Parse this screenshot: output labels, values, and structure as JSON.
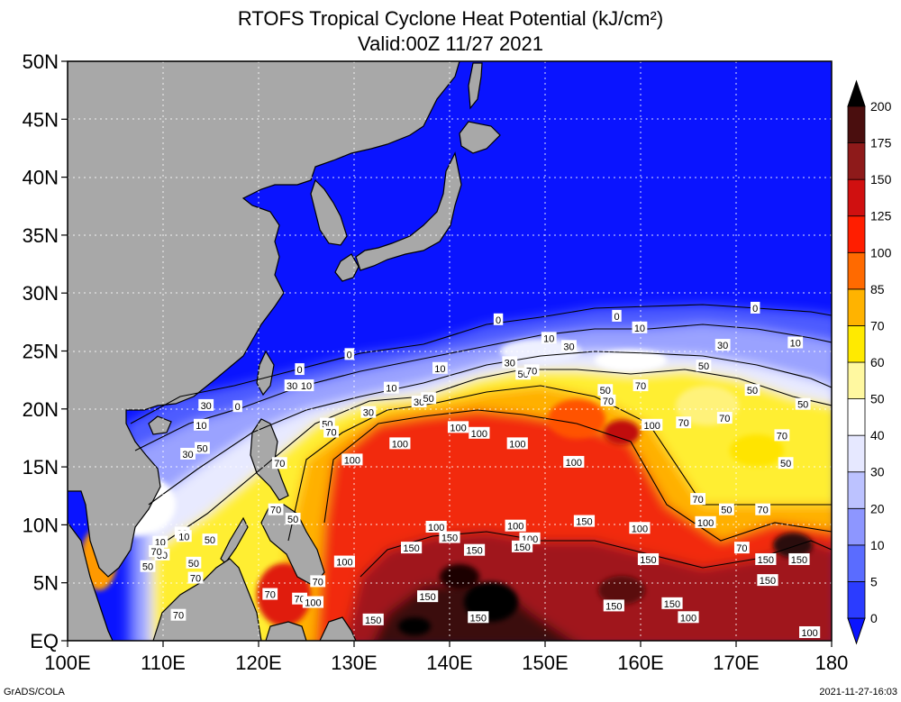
{
  "title_line1": "RTOFS Tropical Cyclone Heat Potential (kJ/cm²)",
  "title_line2": "Valid:00Z 11/27 2021",
  "footer_left": "GrADS/COLA",
  "footer_right": "2021-11-27-16:03",
  "map": {
    "lon_range": [
      100,
      180
    ],
    "lat_range": [
      0,
      50
    ],
    "x_tick_labels": [
      "100E",
      "110E",
      "120E",
      "130E",
      "140E",
      "150E",
      "160E",
      "170E",
      "180"
    ],
    "y_tick_labels": [
      "EQ",
      "5N",
      "10N",
      "15N",
      "20N",
      "25N",
      "30N",
      "35N",
      "40N",
      "45N",
      "50N"
    ],
    "grid": "dotted",
    "land_color": "#a8a8a8",
    "ocean_cold_color": "#0000ff"
  },
  "colorbar": {
    "levels": [
      "0",
      "5",
      "10",
      "20",
      "30",
      "40",
      "50",
      "60",
      "70",
      "85",
      "100",
      "125",
      "150",
      "175",
      "200"
    ],
    "colors": [
      "#0a14ff",
      "#2b3cff",
      "#5a6cff",
      "#8d96ff",
      "#bcc2ff",
      "#e6e8ff",
      "#ffffff",
      "#fff8a0",
      "#ffea00",
      "#ffb300",
      "#ff6a00",
      "#ff1e00",
      "#d01010",
      "#8e1a1a",
      "#4a0e0e",
      "#000000"
    ]
  },
  "contour_labels": [
    {
      "t": "0",
      "lon": 117.8,
      "lat": 20.2
    },
    {
      "t": "0",
      "lon": 129.5,
      "lat": 24.7
    },
    {
      "t": "0",
      "lon": 124.3,
      "lat": 23.4
    },
    {
      "t": "0",
      "lon": 145.1,
      "lat": 27.7
    },
    {
      "t": "0",
      "lon": 157.5,
      "lat": 28.0
    },
    {
      "t": "0",
      "lon": 172.0,
      "lat": 28.7
    },
    {
      "t": "10",
      "lon": 159.9,
      "lat": 27.0
    },
    {
      "t": "10",
      "lon": 150.4,
      "lat": 26.1
    },
    {
      "t": "10",
      "lon": 139.0,
      "lat": 23.5
    },
    {
      "t": "10",
      "lon": 133.9,
      "lat": 21.8
    },
    {
      "t": "10",
      "lon": 125.0,
      "lat": 22.0
    },
    {
      "t": "10",
      "lon": 114.0,
      "lat": 18.6
    },
    {
      "t": "10",
      "lon": 176.2,
      "lat": 25.7
    },
    {
      "t": "30",
      "lon": 114.5,
      "lat": 20.3
    },
    {
      "t": "30",
      "lon": 123.5,
      "lat": 22.0
    },
    {
      "t": "30",
      "lon": 131.5,
      "lat": 19.7
    },
    {
      "t": "30",
      "lon": 136.8,
      "lat": 20.6
    },
    {
      "t": "30",
      "lon": 146.3,
      "lat": 24.0
    },
    {
      "t": "30",
      "lon": 152.5,
      "lat": 25.4
    },
    {
      "t": "30",
      "lon": 168.6,
      "lat": 25.5
    },
    {
      "t": "30",
      "lon": 112.6,
      "lat": 16.1
    },
    {
      "t": "30",
      "lon": 112.0,
      "lat": 9.3
    },
    {
      "t": "10",
      "lon": 112.2,
      "lat": 9.0
    },
    {
      "t": "10",
      "lon": 109.7,
      "lat": 8.5
    },
    {
      "t": "50",
      "lon": 137.8,
      "lat": 20.9
    },
    {
      "t": "50",
      "lon": 147.7,
      "lat": 23.0
    },
    {
      "t": "50",
      "lon": 156.3,
      "lat": 21.6
    },
    {
      "t": "50",
      "lon": 166.6,
      "lat": 23.7
    },
    {
      "t": "50",
      "lon": 171.7,
      "lat": 21.6
    },
    {
      "t": "50",
      "lon": 177.0,
      "lat": 20.4
    },
    {
      "t": "50",
      "lon": 175.2,
      "lat": 15.3
    },
    {
      "t": "50",
      "lon": 169.0,
      "lat": 11.3
    },
    {
      "t": "50",
      "lon": 114.9,
      "lat": 8.7
    },
    {
      "t": "50",
      "lon": 114.1,
      "lat": 16.6
    },
    {
      "t": "50",
      "lon": 127.2,
      "lat": 18.7
    },
    {
      "t": "50",
      "lon": 113.2,
      "lat": 6.7
    },
    {
      "t": "50",
      "lon": 123.6,
      "lat": 10.5
    },
    {
      "t": "50",
      "lon": 109.9,
      "lat": 7.4
    },
    {
      "t": "50",
      "lon": 108.4,
      "lat": 6.4
    },
    {
      "t": "70",
      "lon": 127.6,
      "lat": 18.0
    },
    {
      "t": "70",
      "lon": 148.6,
      "lat": 23.3
    },
    {
      "t": "70",
      "lon": 156.6,
      "lat": 20.7
    },
    {
      "t": "70",
      "lon": 160.0,
      "lat": 22.0
    },
    {
      "t": "70",
      "lon": 164.5,
      "lat": 18.8
    },
    {
      "t": "70",
      "lon": 168.8,
      "lat": 19.2
    },
    {
      "t": "70",
      "lon": 174.8,
      "lat": 17.7
    },
    {
      "t": "70",
      "lon": 166.0,
      "lat": 12.2
    },
    {
      "t": "70",
      "lon": 172.8,
      "lat": 11.3
    },
    {
      "t": "70",
      "lon": 170.6,
      "lat": 8.0
    },
    {
      "t": "70",
      "lon": 109.3,
      "lat": 7.7
    },
    {
      "t": "70",
      "lon": 113.4,
      "lat": 5.4
    },
    {
      "t": "70",
      "lon": 121.2,
      "lat": 4.0
    },
    {
      "t": "70",
      "lon": 124.3,
      "lat": 3.6
    },
    {
      "t": "70",
      "lon": 126.2,
      "lat": 5.1
    },
    {
      "t": "70",
      "lon": 111.6,
      "lat": 2.2
    },
    {
      "t": "70",
      "lon": 121.8,
      "lat": 11.3
    },
    {
      "t": "70",
      "lon": 122.2,
      "lat": 15.3
    },
    {
      "t": "100",
      "lon": 134.8,
      "lat": 17.0
    },
    {
      "t": "100",
      "lon": 129.8,
      "lat": 15.6
    },
    {
      "t": "100",
      "lon": 140.9,
      "lat": 18.4
    },
    {
      "t": "100",
      "lon": 143.1,
      "lat": 17.9
    },
    {
      "t": "100",
      "lon": 147.1,
      "lat": 17.0
    },
    {
      "t": "100",
      "lon": 153.0,
      "lat": 15.4
    },
    {
      "t": "100",
      "lon": 161.2,
      "lat": 18.6
    },
    {
      "t": "100",
      "lon": 146.9,
      "lat": 9.9
    },
    {
      "t": "100",
      "lon": 148.4,
      "lat": 8.8
    },
    {
      "t": "100",
      "lon": 159.9,
      "lat": 9.7
    },
    {
      "t": "100",
      "lon": 166.8,
      "lat": 10.2
    },
    {
      "t": "100",
      "lon": 138.6,
      "lat": 9.8
    },
    {
      "t": "100",
      "lon": 129.0,
      "lat": 6.8
    },
    {
      "t": "100",
      "lon": 125.7,
      "lat": 3.3
    },
    {
      "t": "100",
      "lon": 165.0,
      "lat": 2.0
    },
    {
      "t": "100",
      "lon": 177.7,
      "lat": 0.7
    },
    {
      "t": "150",
      "lon": 154.1,
      "lat": 10.3
    },
    {
      "t": "150",
      "lon": 142.6,
      "lat": 7.8
    },
    {
      "t": "150",
      "lon": 147.6,
      "lat": 8.1
    },
    {
      "t": "150",
      "lon": 136.0,
      "lat": 8.0
    },
    {
      "t": "150",
      "lon": 140.0,
      "lat": 8.9
    },
    {
      "t": "150",
      "lon": 160.8,
      "lat": 7.0
    },
    {
      "t": "150",
      "lon": 176.6,
      "lat": 7.0
    },
    {
      "t": "150",
      "lon": 173.1,
      "lat": 7.0
    },
    {
      "t": "150",
      "lon": 173.3,
      "lat": 5.2
    },
    {
      "t": "150",
      "lon": 163.3,
      "lat": 3.2
    },
    {
      "t": "150",
      "lon": 157.2,
      "lat": 3.0
    },
    {
      "t": "150",
      "lon": 137.7,
      "lat": 3.8
    },
    {
      "t": "150",
      "lon": 132.0,
      "lat": 1.8
    },
    {
      "t": "150",
      "lon": 143.0,
      "lat": 2.0
    }
  ]
}
